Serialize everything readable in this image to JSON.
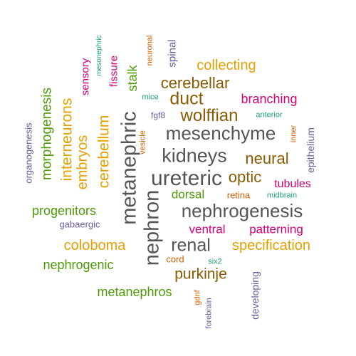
{
  "palette": {
    "gray": "#555555",
    "brown": "#8B5A00",
    "orange": "#E69F00",
    "green": "#4E9A06",
    "magenta": "#D4007A",
    "purple": "#6B5B9A",
    "red": "#D55E00",
    "teal": "#1B9E77"
  },
  "words": [
    {
      "text": "metanephric",
      "color": "gray"
    },
    {
      "text": "nephron",
      "color": "gray"
    },
    {
      "text": "ureteric",
      "color": "gray"
    },
    {
      "text": "kidneys",
      "color": "gray"
    },
    {
      "text": "mesenchyme",
      "color": "gray"
    },
    {
      "text": "nephrogenesis",
      "color": "gray"
    },
    {
      "text": "renal",
      "color": "gray"
    },
    {
      "text": "duct",
      "color": "brown"
    },
    {
      "text": "wolffian",
      "color": "brown"
    },
    {
      "text": "cerebellar",
      "color": "brown"
    },
    {
      "text": "neural",
      "color": "brown"
    },
    {
      "text": "optic",
      "color": "brown"
    },
    {
      "text": "purkinje",
      "color": "brown"
    },
    {
      "text": "collecting",
      "color": "orange"
    },
    {
      "text": "specification",
      "color": "orange"
    },
    {
      "text": "coloboma",
      "color": "orange"
    },
    {
      "text": "interneurons",
      "color": "orange"
    },
    {
      "text": "embryos",
      "color": "orange"
    },
    {
      "text": "cerebellum",
      "color": "orange"
    },
    {
      "text": "morphogenesis",
      "color": "green"
    },
    {
      "text": "progenitors",
      "color": "green"
    },
    {
      "text": "nephrogenic",
      "color": "green"
    },
    {
      "text": "metanephros",
      "color": "green"
    },
    {
      "text": "stalk",
      "color": "green"
    },
    {
      "text": "dorsal",
      "color": "green"
    },
    {
      "text": "branching",
      "color": "magenta"
    },
    {
      "text": "tubules",
      "color": "magenta"
    },
    {
      "text": "patterning",
      "color": "magenta"
    },
    {
      "text": "ventral",
      "color": "magenta"
    },
    {
      "text": "sensory",
      "color": "magenta"
    },
    {
      "text": "fissure",
      "color": "magenta"
    },
    {
      "text": "organogenesis",
      "color": "purple"
    },
    {
      "text": "gabaergic",
      "color": "purple"
    },
    {
      "text": "epithelium",
      "color": "purple"
    },
    {
      "text": "developing",
      "color": "purple"
    },
    {
      "text": "spinal",
      "color": "purple"
    },
    {
      "text": "fgf8",
      "color": "purple"
    },
    {
      "text": "forebrain",
      "color": "purple"
    },
    {
      "text": "neuronal",
      "color": "red"
    },
    {
      "text": "vesicle",
      "color": "red"
    },
    {
      "text": "retina",
      "color": "red"
    },
    {
      "text": "cord",
      "color": "red"
    },
    {
      "text": "gdnf",
      "color": "red"
    },
    {
      "text": "inner",
      "color": "red"
    },
    {
      "text": "mesonephric",
      "color": "teal"
    },
    {
      "text": "mice",
      "color": "teal"
    },
    {
      "text": "anterior",
      "color": "teal"
    },
    {
      "text": "midbrain",
      "color": "teal"
    },
    {
      "text": "six2",
      "color": "teal"
    }
  ]
}
